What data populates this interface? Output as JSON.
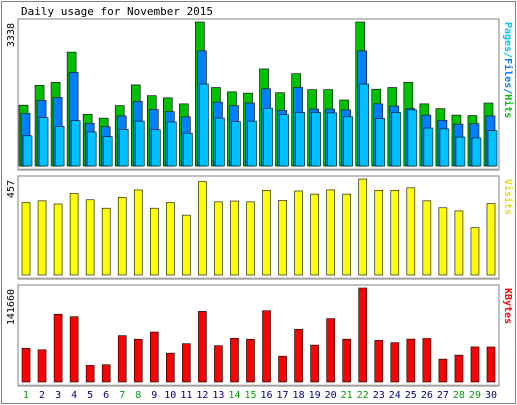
{
  "chart_data": {
    "type": "bar",
    "title": "Daily usage for November 2015",
    "categories": [
      "1",
      "2",
      "3",
      "4",
      "5",
      "6",
      "7",
      "8",
      "9",
      "10",
      "11",
      "12",
      "13",
      "14",
      "15",
      "16",
      "17",
      "18",
      "19",
      "20",
      "21",
      "22",
      "23",
      "24",
      "25",
      "26",
      "27",
      "28",
      "29",
      "30"
    ],
    "weekend_days": [
      "1",
      "7",
      "8",
      "14",
      "15",
      "21",
      "22",
      "28",
      "29"
    ],
    "colors": {
      "hits": "#00c000",
      "files": "#0080ff",
      "pages": "#00c0ff",
      "visits": "#ffff00",
      "kbytes": "#ff0000",
      "label_default": "#000080",
      "label_weekend": "#00a000",
      "bar_outline": "#000000",
      "frame_dark": "#808080",
      "frame_light": "#c0c0c0"
    },
    "panels": [
      {
        "id": "hits",
        "ylabel": "Pages/Files/Hits",
        "ymax_label": "3338",
        "ymax": 3338,
        "series": [
          {
            "name": "Hits",
            "values": [
              1410,
              1870,
              1940,
              2640,
              1200,
              1110,
              1400,
              1880,
              1630,
              1580,
              1440,
              3338,
              1820,
              1720,
              1690,
              2250,
              1700,
              2140,
              1770,
              1770,
              1530,
              3338,
              1780,
              1820,
              1940,
              1440,
              1330,
              1180,
              1170,
              1460
            ]
          },
          {
            "name": "Files",
            "values": [
              1220,
              1520,
              1590,
              2170,
              990,
              910,
              1160,
              1500,
              1310,
              1260,
              1140,
              2670,
              1480,
              1400,
              1460,
              1790,
              1290,
              1820,
              1320,
              1320,
              1300,
              2670,
              1440,
              1390,
              1330,
              1180,
              1060,
              970,
              980,
              1160
            ]
          },
          {
            "name": "Pages",
            "values": [
              700,
              1120,
              920,
              1050,
              790,
              680,
              850,
              1040,
              840,
              1020,
              760,
              1900,
              1110,
              1030,
              1040,
              1340,
              1190,
              1240,
              1240,
              1230,
              1140,
              1900,
              1100,
              1240,
              1300,
              880,
              860,
              670,
              650,
              820
            ]
          }
        ]
      },
      {
        "id": "visits",
        "ylabel": "Visits",
        "ymax_label": "457",
        "ymax": 457,
        "series": [
          {
            "name": "Visits",
            "values": [
              345,
              353,
              338,
              388,
              358,
              318,
              370,
              405,
              318,
              345,
              285,
              445,
              348,
              352,
              348,
              403,
              355,
              400,
              385,
              405,
              385,
              457,
              403,
              403,
              415,
              353,
              320,
              305,
              225,
              340
            ]
          }
        ]
      },
      {
        "id": "kbytes",
        "ylabel": "KBytes",
        "ymax_label": "141660",
        "ymax": 141660,
        "series": [
          {
            "name": "KBytes",
            "values": [
              50700,
              48600,
              102100,
              98400,
              25000,
              26000,
              69900,
              64400,
              75300,
              43500,
              57800,
              106400,
              54700,
              65900,
              64400,
              107400,
              38900,
              79400,
              55600,
              95500,
              64500,
              141660,
              62700,
              59300,
              64700,
              65500,
              34500,
              40500,
              52900,
              52800
            ]
          }
        ]
      }
    ]
  }
}
